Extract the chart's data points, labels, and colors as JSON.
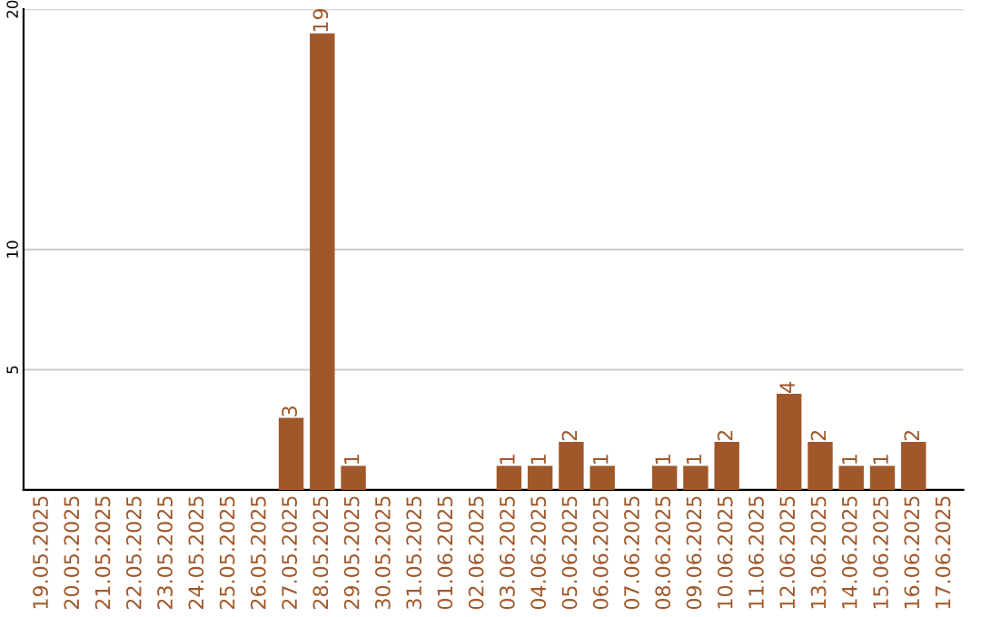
{
  "chart_data": {
    "type": "bar",
    "categories": [
      "19.05.2025",
      "20.05.2025",
      "21.05.2025",
      "22.05.2025",
      "23.05.2025",
      "24.05.2025",
      "25.05.2025",
      "26.05.2025",
      "27.05.2025",
      "28.05.2025",
      "29.05.2025",
      "30.05.2025",
      "31.05.2025",
      "01.06.2025",
      "02.06.2025",
      "03.06.2025",
      "04.06.2025",
      "05.06.2025",
      "06.06.2025",
      "07.06.2025",
      "08.06.2025",
      "09.06.2025",
      "10.06.2025",
      "11.06.2025",
      "12.06.2025",
      "13.06.2025",
      "14.06.2025",
      "15.06.2025",
      "16.06.2025",
      "17.06.2025"
    ],
    "values": [
      0,
      0,
      0,
      0,
      0,
      0,
      0,
      0,
      3,
      19,
      1,
      0,
      0,
      0,
      0,
      1,
      1,
      2,
      1,
      0,
      1,
      1,
      2,
      0,
      4,
      2,
      1,
      1,
      2,
      0
    ],
    "value_labels": [
      null,
      null,
      null,
      null,
      null,
      null,
      null,
      null,
      "3",
      "19",
      "1",
      null,
      null,
      null,
      null,
      "1",
      "1",
      "2",
      "1",
      null,
      "1",
      "1",
      "2",
      null,
      "4",
      "2",
      "1",
      "1",
      "2",
      null
    ],
    "color": "#a0582a",
    "ylim": [
      0,
      20
    ],
    "yticks": [
      5,
      10,
      20
    ],
    "grid": "y"
  }
}
